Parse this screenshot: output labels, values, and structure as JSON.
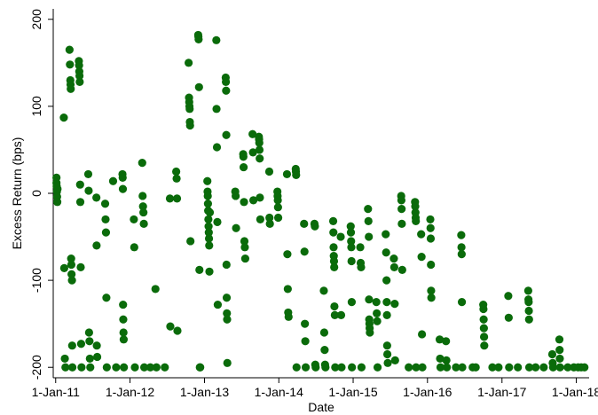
{
  "chart_data": {
    "type": "scatter",
    "xlabel": "Date",
    "ylabel": "Excess Return (bps)",
    "xlim": [
      "2010-12-20",
      "2018-03-05"
    ],
    "ylim": [
      -212,
      212
    ],
    "grid": false,
    "marker_color": "#0a6b0a",
    "x_ticks": [
      {
        "date": "2011-01-01",
        "label": "1-Jan-11"
      },
      {
        "date": "2012-01-01",
        "label": "1-Jan-12"
      },
      {
        "date": "2013-01-01",
        "label": "1-Jan-13"
      },
      {
        "date": "2014-01-01",
        "label": "1-Jan-14"
      },
      {
        "date": "2015-01-01",
        "label": "1-Jan-15"
      },
      {
        "date": "2016-01-01",
        "label": "1-Jan-16"
      },
      {
        "date": "2017-01-01",
        "label": "1-Jan-17"
      },
      {
        "date": "2018-01-01",
        "label": "1-Jan-18"
      }
    ],
    "y_ticks": [
      {
        "value": -200,
        "label": "-200"
      },
      {
        "value": -100,
        "label": "-100"
      },
      {
        "value": 0,
        "label": "0"
      },
      {
        "value": 100,
        "label": "100"
      },
      {
        "value": 200,
        "label": "200"
      }
    ],
    "points": [
      {
        "x": "2011-01-05",
        "y": 18
      },
      {
        "x": "2011-01-05",
        "y": 12
      },
      {
        "x": "2011-01-06",
        "y": 8
      },
      {
        "x": "2011-01-07",
        "y": 2
      },
      {
        "x": "2011-01-08",
        "y": -4
      },
      {
        "x": "2011-01-09",
        "y": -10
      },
      {
        "x": "2011-01-10",
        "y": 5
      },
      {
        "x": "2011-02-10",
        "y": 87
      },
      {
        "x": "2011-02-12",
        "y": -86
      },
      {
        "x": "2011-02-15",
        "y": -190
      },
      {
        "x": "2011-02-18",
        "y": -200
      },
      {
        "x": "2011-03-10",
        "y": 165
      },
      {
        "x": "2011-03-12",
        "y": 148
      },
      {
        "x": "2011-03-14",
        "y": 130
      },
      {
        "x": "2011-03-15",
        "y": 125
      },
      {
        "x": "2011-03-16",
        "y": 120
      },
      {
        "x": "2011-03-18",
        "y": -75
      },
      {
        "x": "2011-03-19",
        "y": -82
      },
      {
        "x": "2011-03-20",
        "y": -93
      },
      {
        "x": "2011-03-22",
        "y": -100
      },
      {
        "x": "2011-03-23",
        "y": -175
      },
      {
        "x": "2011-03-24",
        "y": -200
      },
      {
        "x": "2011-04-25",
        "y": 152
      },
      {
        "x": "2011-04-26",
        "y": 147
      },
      {
        "x": "2011-04-27",
        "y": 140
      },
      {
        "x": "2011-04-28",
        "y": 135
      },
      {
        "x": "2011-04-29",
        "y": 128
      },
      {
        "x": "2011-05-01",
        "y": 10
      },
      {
        "x": "2011-05-02",
        "y": -10
      },
      {
        "x": "2011-05-04",
        "y": -85
      },
      {
        "x": "2011-05-06",
        "y": -173
      },
      {
        "x": "2011-05-08",
        "y": -200
      },
      {
        "x": "2011-06-10",
        "y": 22
      },
      {
        "x": "2011-06-12",
        "y": 3
      },
      {
        "x": "2011-06-14",
        "y": -160
      },
      {
        "x": "2011-06-16",
        "y": -170
      },
      {
        "x": "2011-06-18",
        "y": -190
      },
      {
        "x": "2011-06-20",
        "y": -200
      },
      {
        "x": "2011-07-20",
        "y": -5
      },
      {
        "x": "2011-07-21",
        "y": -60
      },
      {
        "x": "2011-07-22",
        "y": -175
      },
      {
        "x": "2011-07-24",
        "y": -188
      },
      {
        "x": "2011-09-01",
        "y": -12
      },
      {
        "x": "2011-09-03",
        "y": -30
      },
      {
        "x": "2011-09-05",
        "y": -45
      },
      {
        "x": "2011-09-07",
        "y": -120
      },
      {
        "x": "2011-09-09",
        "y": -200
      },
      {
        "x": "2011-10-10",
        "y": 14
      },
      {
        "x": "2011-10-25",
        "y": -200
      },
      {
        "x": "2011-11-25",
        "y": 22
      },
      {
        "x": "2011-11-26",
        "y": 18
      },
      {
        "x": "2011-11-27",
        "y": 5
      },
      {
        "x": "2011-11-28",
        "y": -128
      },
      {
        "x": "2011-11-29",
        "y": -145
      },
      {
        "x": "2011-11-30",
        "y": -160
      },
      {
        "x": "2011-12-01",
        "y": -168
      },
      {
        "x": "2011-12-02",
        "y": -200
      },
      {
        "x": "2012-01-20",
        "y": -30
      },
      {
        "x": "2012-01-22",
        "y": -62
      },
      {
        "x": "2012-01-25",
        "y": -200
      },
      {
        "x": "2012-03-01",
        "y": 35
      },
      {
        "x": "2012-03-03",
        "y": -3
      },
      {
        "x": "2012-03-05",
        "y": -15
      },
      {
        "x": "2012-03-07",
        "y": -22
      },
      {
        "x": "2012-03-09",
        "y": -35
      },
      {
        "x": "2012-03-11",
        "y": -200
      },
      {
        "x": "2012-04-10",
        "y": -200
      },
      {
        "x": "2012-05-05",
        "y": -110
      },
      {
        "x": "2012-05-10",
        "y": -200
      },
      {
        "x": "2012-06-20",
        "y": -200
      },
      {
        "x": "2012-07-15",
        "y": -6
      },
      {
        "x": "2012-07-17",
        "y": -153
      },
      {
        "x": "2012-08-15",
        "y": 25
      },
      {
        "x": "2012-08-17",
        "y": 17
      },
      {
        "x": "2012-08-19",
        "y": -6
      },
      {
        "x": "2012-08-21",
        "y": -158
      },
      {
        "x": "2012-10-15",
        "y": 150
      },
      {
        "x": "2012-10-17",
        "y": 110
      },
      {
        "x": "2012-10-18",
        "y": 105
      },
      {
        "x": "2012-10-19",
        "y": 100
      },
      {
        "x": "2012-10-20",
        "y": 97
      },
      {
        "x": "2012-10-21",
        "y": 82
      },
      {
        "x": "2012-10-22",
        "y": 78
      },
      {
        "x": "2012-10-24",
        "y": -55
      },
      {
        "x": "2012-12-01",
        "y": 182
      },
      {
        "x": "2012-12-02",
        "y": 180
      },
      {
        "x": "2012-12-03",
        "y": 177
      },
      {
        "x": "2012-12-05",
        "y": 122
      },
      {
        "x": "2012-12-07",
        "y": -88
      },
      {
        "x": "2012-12-09",
        "y": -200
      },
      {
        "x": "2012-12-11",
        "y": -200
      },
      {
        "x": "2013-01-15",
        "y": 14
      },
      {
        "x": "2013-01-16",
        "y": 2
      },
      {
        "x": "2013-01-17",
        "y": -3
      },
      {
        "x": "2013-01-18",
        "y": -12
      },
      {
        "x": "2013-01-19",
        "y": -20
      },
      {
        "x": "2013-01-20",
        "y": -30
      },
      {
        "x": "2013-01-21",
        "y": -38
      },
      {
        "x": "2013-01-22",
        "y": -45
      },
      {
        "x": "2013-01-23",
        "y": -52
      },
      {
        "x": "2013-01-24",
        "y": -60
      },
      {
        "x": "2013-01-25",
        "y": -90
      },
      {
        "x": "2013-01-27",
        "y": -22
      },
      {
        "x": "2013-02-28",
        "y": 176
      },
      {
        "x": "2013-03-01",
        "y": 97
      },
      {
        "x": "2013-03-03",
        "y": 53
      },
      {
        "x": "2013-03-05",
        "y": -33
      },
      {
        "x": "2013-03-07",
        "y": -128
      },
      {
        "x": "2013-04-15",
        "y": 133
      },
      {
        "x": "2013-04-16",
        "y": 128
      },
      {
        "x": "2013-04-17",
        "y": 118
      },
      {
        "x": "2013-04-18",
        "y": 67
      },
      {
        "x": "2013-04-19",
        "y": -82
      },
      {
        "x": "2013-04-20",
        "y": -120
      },
      {
        "x": "2013-04-21",
        "y": -138
      },
      {
        "x": "2013-04-22",
        "y": -145
      },
      {
        "x": "2013-04-23",
        "y": -195
      },
      {
        "x": "2013-06-01",
        "y": 2
      },
      {
        "x": "2013-06-03",
        "y": -3
      },
      {
        "x": "2013-06-05",
        "y": -40
      },
      {
        "x": "2013-07-10",
        "y": 45
      },
      {
        "x": "2013-07-11",
        "y": 42
      },
      {
        "x": "2013-07-12",
        "y": 30
      },
      {
        "x": "2013-07-14",
        "y": -10
      },
      {
        "x": "2013-07-16",
        "y": -55
      },
      {
        "x": "2013-07-18",
        "y": -62
      },
      {
        "x": "2013-07-20",
        "y": -75
      },
      {
        "x": "2013-08-25",
        "y": 68
      },
      {
        "x": "2013-08-27",
        "y": 47
      },
      {
        "x": "2013-08-29",
        "y": -8
      },
      {
        "x": "2013-09-25",
        "y": 65
      },
      {
        "x": "2013-09-26",
        "y": 62
      },
      {
        "x": "2013-09-27",
        "y": 58
      },
      {
        "x": "2013-09-28",
        "y": 50
      },
      {
        "x": "2013-09-29",
        "y": 40
      },
      {
        "x": "2013-09-30",
        "y": -5
      },
      {
        "x": "2013-10-02",
        "y": -30
      },
      {
        "x": "2013-11-15",
        "y": 25
      },
      {
        "x": "2013-11-16",
        "y": -28
      },
      {
        "x": "2013-11-18",
        "y": -35
      },
      {
        "x": "2013-12-25",
        "y": 2
      },
      {
        "x": "2013-12-26",
        "y": -3
      },
      {
        "x": "2013-12-27",
        "y": -8
      },
      {
        "x": "2013-12-28",
        "y": -16
      },
      {
        "x": "2013-12-29",
        "y": -28
      },
      {
        "x": "2014-02-10",
        "y": 22
      },
      {
        "x": "2014-02-12",
        "y": -70
      },
      {
        "x": "2014-02-14",
        "y": -110
      },
      {
        "x": "2014-02-16",
        "y": -137
      },
      {
        "x": "2014-02-18",
        "y": -142
      },
      {
        "x": "2014-03-25",
        "y": 28
      },
      {
        "x": "2014-03-26",
        "y": 25
      },
      {
        "x": "2014-03-27",
        "y": 21
      },
      {
        "x": "2014-03-29",
        "y": -200
      },
      {
        "x": "2014-05-05",
        "y": -35
      },
      {
        "x": "2014-05-07",
        "y": -67
      },
      {
        "x": "2014-05-09",
        "y": -150
      },
      {
        "x": "2014-05-11",
        "y": -170
      },
      {
        "x": "2014-05-13",
        "y": -200
      },
      {
        "x": "2014-06-25",
        "y": -35
      },
      {
        "x": "2014-06-27",
        "y": -38
      },
      {
        "x": "2014-06-29",
        "y": -197
      },
      {
        "x": "2014-07-01",
        "y": -200
      },
      {
        "x": "2014-08-10",
        "y": -112
      },
      {
        "x": "2014-08-12",
        "y": -160
      },
      {
        "x": "2014-08-14",
        "y": -180
      },
      {
        "x": "2014-08-16",
        "y": -197
      },
      {
        "x": "2014-08-18",
        "y": -200
      },
      {
        "x": "2014-09-25",
        "y": -32
      },
      {
        "x": "2014-09-26",
        "y": -45
      },
      {
        "x": "2014-09-27",
        "y": -62
      },
      {
        "x": "2014-09-28",
        "y": -72
      },
      {
        "x": "2014-09-29",
        "y": -78
      },
      {
        "x": "2014-09-30",
        "y": -85
      },
      {
        "x": "2014-10-01",
        "y": -130
      },
      {
        "x": "2014-10-03",
        "y": -140
      },
      {
        "x": "2014-10-05",
        "y": -200
      },
      {
        "x": "2014-11-01",
        "y": -50
      },
      {
        "x": "2014-11-03",
        "y": -140
      },
      {
        "x": "2014-11-05",
        "y": -200
      },
      {
        "x": "2014-12-20",
        "y": -38
      },
      {
        "x": "2014-12-21",
        "y": -45
      },
      {
        "x": "2014-12-22",
        "y": -55
      },
      {
        "x": "2014-12-23",
        "y": -62
      },
      {
        "x": "2014-12-24",
        "y": -78
      },
      {
        "x": "2014-12-25",
        "y": -125
      },
      {
        "x": "2014-12-26",
        "y": -200
      },
      {
        "x": "2015-02-05",
        "y": -62
      },
      {
        "x": "2015-02-07",
        "y": -80
      },
      {
        "x": "2015-02-09",
        "y": -85
      },
      {
        "x": "2015-02-11",
        "y": -200
      },
      {
        "x": "2015-03-15",
        "y": -18
      },
      {
        "x": "2015-03-17",
        "y": -32
      },
      {
        "x": "2015-03-19",
        "y": -50
      },
      {
        "x": "2015-03-20",
        "y": -122
      },
      {
        "x": "2015-03-21",
        "y": -145
      },
      {
        "x": "2015-03-22",
        "y": -150
      },
      {
        "x": "2015-03-23",
        "y": -155
      },
      {
        "x": "2015-03-24",
        "y": -160
      },
      {
        "x": "2015-04-25",
        "y": -125
      },
      {
        "x": "2015-04-27",
        "y": -138
      },
      {
        "x": "2015-04-29",
        "y": -147
      },
      {
        "x": "2015-05-01",
        "y": -200
      },
      {
        "x": "2015-06-10",
        "y": -47
      },
      {
        "x": "2015-06-12",
        "y": -68
      },
      {
        "x": "2015-06-14",
        "y": -100
      },
      {
        "x": "2015-06-15",
        "y": -125
      },
      {
        "x": "2015-06-16",
        "y": -140
      },
      {
        "x": "2015-06-17",
        "y": -175
      },
      {
        "x": "2015-06-18",
        "y": -185
      },
      {
        "x": "2015-06-20",
        "y": -195
      },
      {
        "x": "2015-07-20",
        "y": -75
      },
      {
        "x": "2015-07-22",
        "y": -85
      },
      {
        "x": "2015-07-24",
        "y": -127
      },
      {
        "x": "2015-07-26",
        "y": -192
      },
      {
        "x": "2015-08-25",
        "y": -3
      },
      {
        "x": "2015-08-26",
        "y": -8
      },
      {
        "x": "2015-08-27",
        "y": -18
      },
      {
        "x": "2015-08-28",
        "y": -35
      },
      {
        "x": "2015-08-30",
        "y": -88
      },
      {
        "x": "2015-10-01",
        "y": -200
      },
      {
        "x": "2015-11-01",
        "y": -10
      },
      {
        "x": "2015-11-02",
        "y": -15
      },
      {
        "x": "2015-11-03",
        "y": -22
      },
      {
        "x": "2015-11-04",
        "y": -28
      },
      {
        "x": "2015-11-05",
        "y": -32
      },
      {
        "x": "2015-11-06",
        "y": -200
      },
      {
        "x": "2015-12-01",
        "y": -47
      },
      {
        "x": "2015-12-03",
        "y": -73
      },
      {
        "x": "2015-12-05",
        "y": -162
      },
      {
        "x": "2015-12-07",
        "y": -200
      },
      {
        "x": "2016-01-15",
        "y": -30
      },
      {
        "x": "2016-01-16",
        "y": -40
      },
      {
        "x": "2016-01-17",
        "y": -52
      },
      {
        "x": "2016-01-18",
        "y": -82
      },
      {
        "x": "2016-01-19",
        "y": -112
      },
      {
        "x": "2016-01-20",
        "y": -120
      },
      {
        "x": "2016-03-01",
        "y": -168
      },
      {
        "x": "2016-03-03",
        "y": -190
      },
      {
        "x": "2016-03-05",
        "y": -200
      },
      {
        "x": "2016-04-01",
        "y": -170
      },
      {
        "x": "2016-04-03",
        "y": -192
      },
      {
        "x": "2016-04-05",
        "y": -200
      },
      {
        "x": "2016-05-20",
        "y": -200
      },
      {
        "x": "2016-06-15",
        "y": -48
      },
      {
        "x": "2016-06-16",
        "y": -62
      },
      {
        "x": "2016-06-17",
        "y": -70
      },
      {
        "x": "2016-06-18",
        "y": -125
      },
      {
        "x": "2016-06-20",
        "y": -200
      },
      {
        "x": "2016-08-10",
        "y": -200
      },
      {
        "x": "2016-08-25",
        "y": -200
      },
      {
        "x": "2016-10-01",
        "y": -128
      },
      {
        "x": "2016-10-02",
        "y": -133
      },
      {
        "x": "2016-10-03",
        "y": -145
      },
      {
        "x": "2016-10-04",
        "y": -155
      },
      {
        "x": "2016-10-05",
        "y": -165
      },
      {
        "x": "2016-10-06",
        "y": -175
      },
      {
        "x": "2016-11-15",
        "y": -200
      },
      {
        "x": "2016-12-15",
        "y": -200
      },
      {
        "x": "2017-02-01",
        "y": -118
      },
      {
        "x": "2017-02-03",
        "y": -143
      },
      {
        "x": "2017-02-05",
        "y": -200
      },
      {
        "x": "2017-03-20",
        "y": -200
      },
      {
        "x": "2017-05-10",
        "y": -112
      },
      {
        "x": "2017-05-11",
        "y": -122
      },
      {
        "x": "2017-05-12",
        "y": -125
      },
      {
        "x": "2017-05-13",
        "y": -135
      },
      {
        "x": "2017-05-14",
        "y": -145
      },
      {
        "x": "2017-05-15",
        "y": -200
      },
      {
        "x": "2017-06-15",
        "y": -200
      },
      {
        "x": "2017-07-25",
        "y": -200
      },
      {
        "x": "2017-09-05",
        "y": -185
      },
      {
        "x": "2017-09-07",
        "y": -195
      },
      {
        "x": "2017-09-09",
        "y": -200
      },
      {
        "x": "2017-10-10",
        "y": -168
      },
      {
        "x": "2017-10-11",
        "y": -180
      },
      {
        "x": "2017-10-12",
        "y": -190
      },
      {
        "x": "2017-10-13",
        "y": -200
      },
      {
        "x": "2017-11-20",
        "y": -200
      },
      {
        "x": "2017-12-20",
        "y": -200
      },
      {
        "x": "2018-01-10",
        "y": -200
      },
      {
        "x": "2018-01-25",
        "y": -200
      },
      {
        "x": "2018-02-10",
        "y": -200
      }
    ]
  }
}
